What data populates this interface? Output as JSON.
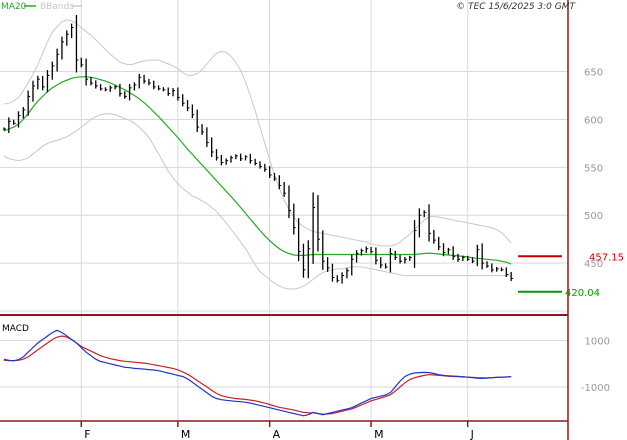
{
  "header": {
    "legend_ma": "MA20",
    "legend_bb": "BBands",
    "copyright": "© TEC 15/6/2025 3:0 GMT"
  },
  "colors": {
    "price": "#000000",
    "ma20": "#22aa22",
    "bbands": "#c8c8c8",
    "macd": "#2233cc",
    "signal": "#cc2222",
    "grid": "#d9d9d9",
    "axis": "#8b1a1a",
    "tick": "#999999",
    "resistance": "#cc0000",
    "support": "#009900"
  },
  "chart_data": [
    {
      "type": "line",
      "panel": "price",
      "title": "",
      "y_ticks": [
        {
          "value": 45000,
          "label": "450"
        },
        {
          "value": 50000,
          "label": "500"
        },
        {
          "value": 55000,
          "label": "550"
        },
        {
          "value": 60000,
          "label": "600"
        },
        {
          "value": 65000,
          "label": "650"
        }
      ],
      "ylim": [
        40000,
        70800
      ],
      "x_ticks": [
        {
          "index": 16,
          "label": "F"
        },
        {
          "index": 36,
          "label": "M"
        },
        {
          "index": 55,
          "label": "A"
        },
        {
          "index": 76,
          "label": "M"
        },
        {
          "index": 96,
          "label": "J"
        }
      ],
      "n_bars": 106,
      "close": [
        59000,
        59800,
        59600,
        60400,
        61000,
        62400,
        63500,
        64200,
        63400,
        64600,
        65600,
        66800,
        68100,
        68900,
        69600,
        66200,
        65700,
        64200,
        63800,
        63500,
        63200,
        63100,
        63300,
        63400,
        62700,
        62400,
        63300,
        63600,
        64400,
        64000,
        63800,
        63400,
        63200,
        63100,
        62700,
        63000,
        62300,
        61700,
        61200,
        60500,
        59200,
        58700,
        57600,
        56600,
        56000,
        55500,
        55700,
        56000,
        56200,
        55900,
        56100,
        55700,
        55400,
        55100,
        54800,
        54200,
        53800,
        53100,
        52300,
        50500,
        48700,
        46200,
        44300,
        46500,
        50800,
        47500,
        45200,
        44500,
        43500,
        43200,
        43700,
        44200,
        45400,
        46000,
        46300,
        46500,
        46200,
        45300,
        44800,
        44600,
        46000,
        45600,
        45200,
        45400,
        45600,
        48400,
        50000,
        50300,
        48100,
        47400,
        46700,
        46100,
        46400,
        45700,
        45400,
        45600,
        45400,
        45200,
        46400,
        45000,
        44700,
        44300,
        44400,
        44300,
        43800,
        43400
      ],
      "ma20": [
        58800,
        59000,
        59200,
        59500,
        60000,
        60600,
        61300,
        61900,
        62400,
        62900,
        63300,
        63600,
        63900,
        64100,
        64300,
        64400,
        64450,
        64450,
        64400,
        64300,
        64150,
        64000,
        63800,
        63600,
        63350,
        63100,
        62800,
        62500,
        62150,
        61750,
        61300,
        60800,
        60300,
        59750,
        59200,
        58650,
        58100,
        57500,
        56900,
        56350,
        55800,
        55250,
        54700,
        54150,
        53600,
        53050,
        52500,
        51950,
        51400,
        50800,
        50200,
        49600,
        49000,
        48400,
        47850,
        47350,
        46900,
        46500,
        46200,
        46000,
        45850,
        45800,
        45800,
        45850,
        45900,
        45900,
        45900,
        45900,
        45900,
        45900,
        45900,
        45900,
        45900,
        45900,
        45900,
        45900,
        45900,
        45900,
        45900,
        45900,
        45900,
        45900,
        45900,
        45900,
        45900,
        45900,
        45950,
        46000,
        46050,
        46000,
        45950,
        45900,
        45850,
        45800,
        45750,
        45700,
        45650,
        45550,
        45500,
        45450,
        45400,
        45350,
        45300,
        45200,
        45100,
        44900
      ],
      "bb_upper": [
        61600,
        61700,
        61900,
        62300,
        63000,
        63800,
        64700,
        65700,
        66900,
        68100,
        69100,
        69700,
        70200,
        70400,
        70300,
        70000,
        69600,
        69200,
        68800,
        68300,
        67800,
        67300,
        66800,
        66400,
        66000,
        65800,
        65700,
        65800,
        66000,
        66100,
        66200,
        66200,
        66200,
        66000,
        65800,
        65600,
        65300,
        64900,
        64600,
        64600,
        64800,
        65200,
        65800,
        66400,
        66900,
        67100,
        67000,
        66600,
        66000,
        65100,
        63900,
        62500,
        60900,
        59200,
        57500,
        55800,
        54200,
        52800,
        51600,
        50600,
        49800,
        49200,
        48800,
        48500,
        48300,
        48200,
        48100,
        48000,
        47900,
        47800,
        47700,
        47600,
        47500,
        47400,
        47300,
        47200,
        47000,
        46900,
        46800,
        46800,
        46800,
        46900,
        47200,
        47600,
        48000,
        48500,
        49000,
        49500,
        49800,
        49900,
        49800,
        49700,
        49600,
        49500,
        49400,
        49300,
        49200,
        49100,
        49000,
        48900,
        48800,
        48700,
        48500,
        48200,
        47700,
        47100
      ],
      "bb_lower": [
        56200,
        55900,
        55800,
        55700,
        55800,
        56000,
        56400,
        56800,
        57200,
        57500,
        57700,
        57800,
        58000,
        58200,
        58500,
        58800,
        59200,
        59600,
        60000,
        60300,
        60500,
        60600,
        60600,
        60500,
        60300,
        60100,
        59900,
        59600,
        59200,
        58700,
        58100,
        57300,
        56400,
        55500,
        54600,
        53900,
        53300,
        52800,
        52400,
        52000,
        51800,
        51500,
        51200,
        50800,
        50400,
        49800,
        49200,
        48500,
        47900,
        47200,
        46500,
        45700,
        44800,
        44100,
        43700,
        43300,
        42900,
        42600,
        42400,
        42300,
        42300,
        42400,
        42600,
        42900,
        43300,
        43700,
        44000,
        44200,
        44300,
        44400,
        44400,
        44500,
        44600,
        44600,
        44600,
        44500,
        44400,
        44300,
        44200,
        44100,
        44000,
        43900,
        43800,
        43700,
        43700,
        43700,
        43700,
        43700,
        43700,
        43700,
        43700,
        43700,
        43700,
        43700,
        43700,
        43700,
        43700,
        43700,
        43700,
        43700,
        43700,
        43700,
        43700,
        43700,
        43700,
        43800
      ],
      "levels": [
        {
          "name": "resistance",
          "value": 45715,
          "label": "457.15"
        },
        {
          "name": "support",
          "value": 42004,
          "label": "420.04"
        }
      ]
    },
    {
      "type": "line",
      "panel": "macd",
      "title": "MACD",
      "y_ticks": [
        {
          "value": 1000,
          "label": "1000"
        },
        {
          "value": -1000,
          "label": "-1000"
        }
      ],
      "ylim": [
        -2300,
        1850
      ],
      "series": [
        {
          "name": "macd",
          "values": [
            200,
            150,
            130,
            180,
            300,
            500,
            700,
            900,
            1050,
            1200,
            1350,
            1450,
            1350,
            1200,
            1050,
            900,
            700,
            500,
            350,
            200,
            100,
            50,
            0,
            -50,
            -100,
            -150,
            -170,
            -200,
            -210,
            -230,
            -250,
            -270,
            -300,
            -350,
            -400,
            -450,
            -500,
            -550,
            -650,
            -800,
            -950,
            -1100,
            -1250,
            -1400,
            -1500,
            -1550,
            -1580,
            -1600,
            -1620,
            -1640,
            -1660,
            -1700,
            -1750,
            -1800,
            -1850,
            -1900,
            -1950,
            -2000,
            -2050,
            -2100,
            -2150,
            -2200,
            -2250,
            -2200,
            -2100,
            -2150,
            -2200,
            -2150,
            -2100,
            -2050,
            -2000,
            -1950,
            -1900,
            -1800,
            -1700,
            -1600,
            -1500,
            -1450,
            -1400,
            -1350,
            -1250,
            -1000,
            -750,
            -550,
            -450,
            -400,
            -380,
            -370,
            -380,
            -420,
            -470,
            -500,
            -520,
            -530,
            -540,
            -560,
            -580,
            -600,
            -620,
            -630,
            -620,
            -600,
            -590,
            -580,
            -570,
            -560
          ]
        },
        {
          "name": "signal",
          "values": [
            150,
            140,
            140,
            150,
            200,
            300,
            450,
            600,
            750,
            900,
            1050,
            1150,
            1200,
            1150,
            1050,
            900,
            750,
            650,
            550,
            450,
            350,
            280,
            220,
            180,
            140,
            110,
            90,
            70,
            50,
            30,
            0,
            -40,
            -80,
            -120,
            -160,
            -200,
            -260,
            -350,
            -450,
            -580,
            -720,
            -860,
            -1000,
            -1150,
            -1280,
            -1380,
            -1430,
            -1470,
            -1500,
            -1520,
            -1540,
            -1570,
            -1600,
            -1650,
            -1700,
            -1760,
            -1820,
            -1880,
            -1920,
            -1960,
            -2000,
            -2050,
            -2100,
            -2120,
            -2120,
            -2150,
            -2180,
            -2170,
            -2150,
            -2100,
            -2050,
            -2000,
            -1950,
            -1870,
            -1780,
            -1690,
            -1600,
            -1540,
            -1480,
            -1420,
            -1340,
            -1180,
            -1000,
            -820,
            -680,
            -600,
            -550,
            -500,
            -470,
            -480,
            -500,
            -520,
            -540,
            -550,
            -560,
            -570,
            -580,
            -590,
            -600,
            -610,
            -610,
            -600,
            -590,
            -580,
            -570,
            -560
          ]
        }
      ]
    }
  ]
}
